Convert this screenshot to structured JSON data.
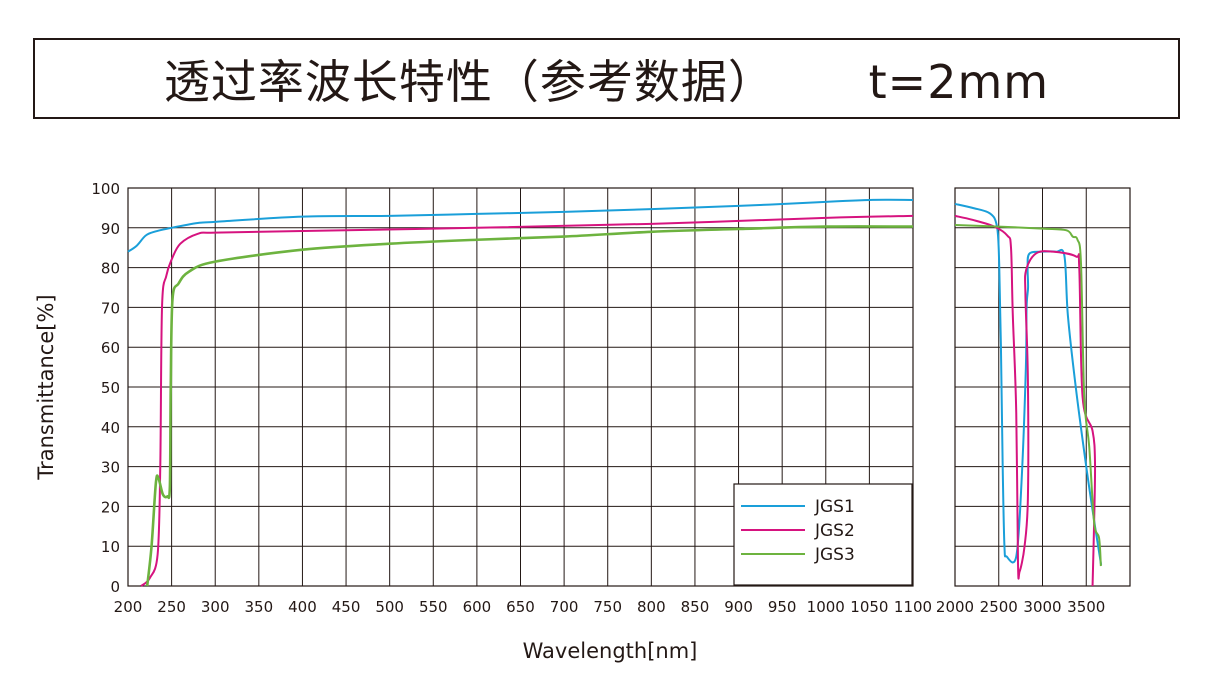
{
  "title": "透过率波长特性（参考数据）      t=2mm",
  "chart_data": [
    {
      "type": "line",
      "xlabel": "Wavelength[nm]",
      "ylabel": "Transmittance[%]",
      "xlim": [
        200,
        1100
      ],
      "ylim": [
        0,
        100
      ],
      "grid": true,
      "x_ticks": [
        "200",
        "250",
        "300",
        "350",
        "400",
        "450",
        "500",
        "550",
        "600",
        "650",
        "700",
        "750",
        "800",
        "850",
        "900",
        "950",
        "1000",
        "1050",
        "1100"
      ],
      "y_ticks": [
        "0",
        "10",
        "20",
        "30",
        "40",
        "50",
        "60",
        "70",
        "80",
        "90",
        "100"
      ],
      "legend": {
        "placement": "bottom-right",
        "entries": [
          "JGS1",
          "JGS2",
          "JGS3"
        ]
      },
      "series": [
        {
          "name": "JGS1",
          "color": "#1a9fd9",
          "points": [
            [
              200,
              84
            ],
            [
              210,
              85.5
            ],
            [
              220,
              88
            ],
            [
              230,
              89
            ],
            [
              250,
              90
            ],
            [
              280,
              91.2
            ],
            [
              300,
              91.5
            ],
            [
              400,
              92.8
            ],
            [
              500,
              93
            ],
            [
              600,
              93.5
            ],
            [
              700,
              94
            ],
            [
              800,
              94.7
            ],
            [
              900,
              95.5
            ],
            [
              1000,
              96.5
            ],
            [
              1050,
              97
            ],
            [
              1100,
              97
            ]
          ]
        },
        {
          "name": "JGS2",
          "color": "#d6137f",
          "points": [
            [
              215,
              0
            ],
            [
              225,
              2
            ],
            [
              234,
              8
            ],
            [
              237,
              30
            ],
            [
              239,
              70
            ],
            [
              244,
              78
            ],
            [
              250,
              82
            ],
            [
              260,
              86
            ],
            [
              280,
              88.5
            ],
            [
              300,
              88.8
            ],
            [
              400,
              89.2
            ],
            [
              600,
              90
            ],
            [
              800,
              91
            ],
            [
              1000,
              92.5
            ],
            [
              1100,
              93
            ]
          ]
        },
        {
          "name": "JGS3",
          "color": "#6db33f",
          "points": [
            [
              222,
              0
            ],
            [
              227,
              10
            ],
            [
              232,
              26
            ],
            [
              235,
              27
            ],
            [
              240,
              23
            ],
            [
              245,
              22.5
            ],
            [
              248,
              25
            ],
            [
              249,
              50
            ],
            [
              251,
              72
            ],
            [
              258,
              76
            ],
            [
              270,
              79
            ],
            [
              300,
              81.5
            ],
            [
              400,
              84.5
            ],
            [
              500,
              86
            ],
            [
              600,
              87
            ],
            [
              700,
              87.8
            ],
            [
              800,
              89
            ],
            [
              900,
              89.7
            ],
            [
              1000,
              90.3
            ],
            [
              1100,
              90.3
            ]
          ]
        }
      ]
    },
    {
      "type": "line",
      "xlim": [
        2000,
        4000
      ],
      "ylim": [
        0,
        100
      ],
      "grid": true,
      "x_ticks": [
        "2000",
        "2500",
        "3000",
        "3500"
      ],
      "series": [
        {
          "name": "JGS1",
          "color": "#1a9fd9",
          "points": [
            [
              2000,
              96
            ],
            [
              2200,
              95
            ],
            [
              2400,
              93.6
            ],
            [
              2480,
              90.3
            ],
            [
              2505,
              81
            ],
            [
              2525,
              60
            ],
            [
              2545,
              30
            ],
            [
              2565,
              10
            ],
            [
              2590,
              7.4
            ],
            [
              2700,
              7.4
            ],
            [
              2760,
              26
            ],
            [
              2810,
              55
            ],
            [
              2818,
              70
            ],
            [
              2835,
              75
            ],
            [
              2830,
              80
            ],
            [
              2850,
              83.5
            ],
            [
              3000,
              84
            ],
            [
              3155,
              84
            ],
            [
              3250,
              83
            ],
            [
              3290,
              68
            ],
            [
              3380,
              50
            ],
            [
              3500,
              30
            ],
            [
              3600,
              15
            ],
            [
              3670,
              5.3
            ]
          ]
        },
        {
          "name": "JGS2",
          "color": "#d6137f",
          "points": [
            [
              2000,
              93
            ],
            [
              2200,
              92
            ],
            [
              2450,
              90.3
            ],
            [
              2600,
              88
            ],
            [
              2640,
              85
            ],
            [
              2660,
              68.5
            ],
            [
              2700,
              43.5
            ],
            [
              2720,
              5.7
            ],
            [
              2738,
              3.6
            ],
            [
              2795,
              10
            ],
            [
              2833,
              22
            ],
            [
              2833,
              52
            ],
            [
              2805,
              73
            ],
            [
              2814,
              79.5
            ],
            [
              2928,
              83.6
            ],
            [
              3117,
              84
            ],
            [
              3383,
              82.8
            ],
            [
              3420,
              80
            ],
            [
              3458,
              47.5
            ],
            [
              3572,
              39
            ],
            [
              3600,
              31
            ],
            [
              3590,
              16
            ],
            [
              3572,
              0
            ]
          ]
        },
        {
          "name": "JGS3",
          "color": "#6db33f",
          "points": [
            [
              2000,
              90.7
            ],
            [
              2500,
              90.3
            ],
            [
              3000,
              89.8
            ],
            [
              3269,
              89.4
            ],
            [
              3345,
              87.8
            ],
            [
              3400,
              87
            ],
            [
              3440,
              81
            ],
            [
              3477,
              47.5
            ],
            [
              3534,
              35
            ],
            [
              3590,
              16
            ],
            [
              3647,
              12
            ],
            [
              3667,
              5
            ]
          ]
        }
      ]
    }
  ]
}
